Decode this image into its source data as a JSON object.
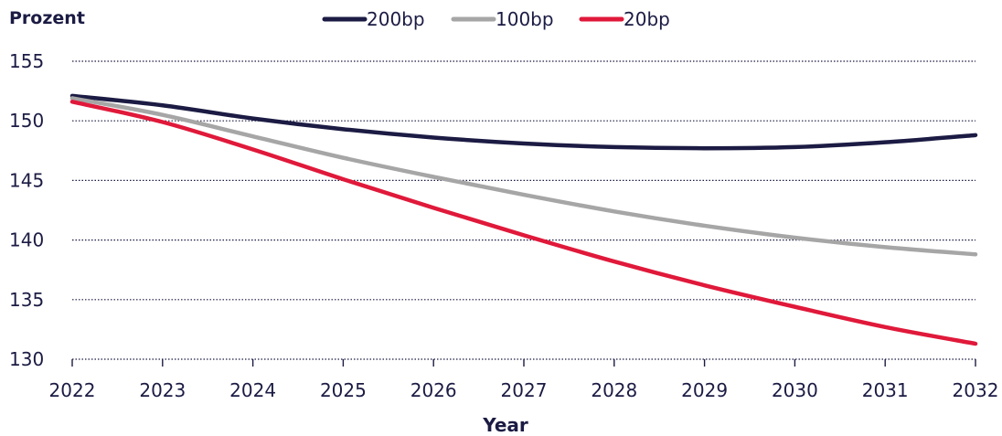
{
  "chart_data": {
    "type": "line",
    "ylabel": "Prozent",
    "xlabel": "Year",
    "x": [
      2022,
      2023,
      2024,
      2025,
      2026,
      2027,
      2028,
      2029,
      2030,
      2031,
      2032
    ],
    "x_tick_labels": [
      "2022",
      "2023",
      "2024",
      "2025",
      "2026",
      "2027",
      "2028",
      "2029",
      "2030",
      "2031",
      "2032"
    ],
    "ylim": [
      130,
      155
    ],
    "y_ticks": [
      130,
      135,
      140,
      145,
      150,
      155
    ],
    "y_tick_labels": [
      "130",
      "135",
      "140",
      "145",
      "150",
      "155"
    ],
    "grid": "horizontal dotted",
    "legend_position": "top",
    "series": [
      {
        "name": "200bp",
        "color": "#1b1b44",
        "values": [
          152.1,
          151.3,
          150.2,
          149.3,
          148.6,
          148.1,
          147.8,
          147.7,
          147.8,
          148.2,
          148.8
        ]
      },
      {
        "name": "100bp",
        "color": "#a6a6a6",
        "values": [
          151.9,
          150.5,
          148.7,
          146.9,
          145.3,
          143.8,
          142.4,
          141.2,
          140.2,
          139.4,
          138.8
        ]
      },
      {
        "name": "20bp",
        "color": "#e0193a",
        "values": [
          151.6,
          149.9,
          147.6,
          145.1,
          142.7,
          140.4,
          138.2,
          136.2,
          134.4,
          132.7,
          131.3
        ]
      }
    ]
  }
}
